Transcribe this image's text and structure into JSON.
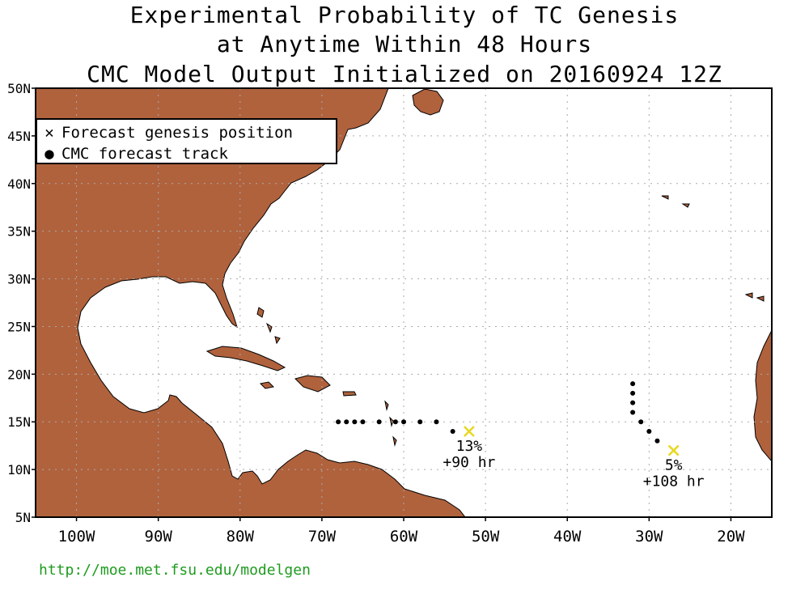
{
  "title": {
    "line1": "Experimental Probability of TC Genesis",
    "line2": "at Anytime Within 48 Hours",
    "line3": "CMC Model Output Initialized on 20160924 12Z"
  },
  "legend": {
    "genesis_label": "Forecast genesis position",
    "track_label": "CMC forecast track"
  },
  "axes": {
    "lat_labels": [
      "50N",
      "45N",
      "40N",
      "35N",
      "30N",
      "25N",
      "20N",
      "15N",
      "10N",
      "5N"
    ],
    "lon_labels": [
      "100W",
      "90W",
      "80W",
      "70W",
      "60W",
      "50W",
      "40W",
      "30W",
      "20W"
    ]
  },
  "colors": {
    "land": "#b0623d",
    "ocean": "#ffffff",
    "genesis_marker": "#e8d822",
    "url_text": "#1e9b1e"
  },
  "systems": [
    {
      "genesis": {
        "lon": -52,
        "lat": 14
      },
      "probability": "13%",
      "lead_time": "+90 hr",
      "track": [
        {
          "lon": -68,
          "lat": 15
        },
        {
          "lon": -67,
          "lat": 15
        },
        {
          "lon": -66,
          "lat": 15
        },
        {
          "lon": -65,
          "lat": 15
        },
        {
          "lon": -63,
          "lat": 15
        },
        {
          "lon": -61,
          "lat": 15
        },
        {
          "lon": -60,
          "lat": 15
        },
        {
          "lon": -58,
          "lat": 15
        },
        {
          "lon": -56,
          "lat": 15
        },
        {
          "lon": -54,
          "lat": 14
        }
      ]
    },
    {
      "genesis": {
        "lon": -27,
        "lat": 12
      },
      "probability": "5%",
      "lead_time": "+108 hr",
      "track": [
        {
          "lon": -32,
          "lat": 19
        },
        {
          "lon": -32,
          "lat": 18
        },
        {
          "lon": -32,
          "lat": 17
        },
        {
          "lon": -32,
          "lat": 16
        },
        {
          "lon": -31,
          "lat": 15
        },
        {
          "lon": -30,
          "lat": 14
        },
        {
          "lon": -29,
          "lat": 13
        }
      ]
    }
  ],
  "footer": {
    "url": "http://moe.met.fsu.edu/modelgen"
  }
}
